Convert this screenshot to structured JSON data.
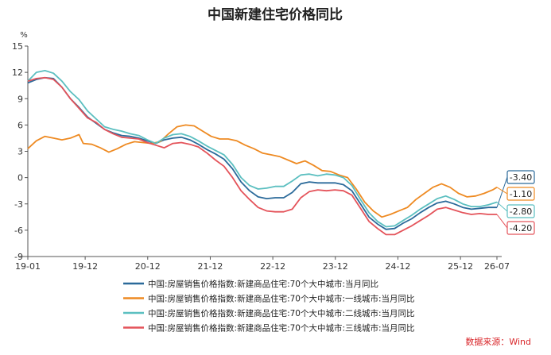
{
  "chart_data": {
    "type": "line",
    "title": "中国新建住宅价格同比",
    "unit": "%",
    "ylim": [
      -9,
      15
    ],
    "yticks": [
      "15",
      "12",
      "9",
      "6",
      "3",
      "0",
      "-3",
      "-6",
      "-9"
    ],
    "xticks": [
      "19-01",
      "19-12",
      "20-12",
      "21-12",
      "22-12",
      "23-12",
      "24-12",
      "25-12",
      "26-07"
    ],
    "grid": false,
    "legend_position": "bottom",
    "source": "数据来源：Wind",
    "series": [
      {
        "name": "中国:房屋销售价格指数:新建商品住宅:70个大中城市:当月同比",
        "color": "#2b6a9a",
        "last_label": "-3.40",
        "points": [
          [
            0,
            10.8
          ],
          [
            2,
            11.2
          ],
          [
            4,
            11.4
          ],
          [
            6,
            11.3
          ],
          [
            8,
            10.3
          ],
          [
            10,
            9.0
          ],
          [
            12,
            8.0
          ],
          [
            14,
            6.9
          ],
          [
            16,
            6.2
          ],
          [
            18,
            5.5
          ],
          [
            20,
            5.1
          ],
          [
            22,
            4.8
          ],
          [
            24,
            4.7
          ],
          [
            26,
            4.5
          ],
          [
            28,
            4.2
          ],
          [
            30,
            3.9
          ],
          [
            32,
            4.3
          ],
          [
            34,
            4.5
          ],
          [
            36,
            4.6
          ],
          [
            38,
            4.3
          ],
          [
            40,
            3.8
          ],
          [
            42,
            3.2
          ],
          [
            44,
            2.7
          ],
          [
            46,
            2.1
          ],
          [
            48,
            1.0
          ],
          [
            50,
            -0.5
          ],
          [
            52,
            -1.5
          ],
          [
            54,
            -2.2
          ],
          [
            56,
            -2.4
          ],
          [
            58,
            -2.3
          ],
          [
            60,
            -2.3
          ],
          [
            62,
            -1.7
          ],
          [
            64,
            -0.7
          ],
          [
            66,
            -0.5
          ],
          [
            68,
            -0.6
          ],
          [
            70,
            -0.6
          ],
          [
            72,
            -0.6
          ],
          [
            74,
            -0.8
          ],
          [
            76,
            -1.5
          ],
          [
            78,
            -3.0
          ],
          [
            80,
            -4.5
          ],
          [
            82,
            -5.3
          ],
          [
            84,
            -5.9
          ],
          [
            86,
            -5.8
          ],
          [
            88,
            -5.2
          ],
          [
            90,
            -4.7
          ],
          [
            92,
            -4.0
          ],
          [
            94,
            -3.4
          ],
          [
            96,
            -2.9
          ],
          [
            98,
            -2.7
          ],
          [
            100,
            -3.0
          ],
          [
            102,
            -3.4
          ],
          [
            104,
            -3.6
          ],
          [
            106,
            -3.5
          ],
          [
            108,
            -3.4
          ],
          [
            110,
            -3.4
          ]
        ]
      },
      {
        "name": "中国:房屋销售价格指数:新建商品住宅:70个大中城市:一线城市:当月同比",
        "color": "#ee8a22",
        "last_label": "-1.10",
        "points": [
          [
            0,
            3.3
          ],
          [
            2,
            4.2
          ],
          [
            4,
            4.7
          ],
          [
            6,
            4.5
          ],
          [
            8,
            4.3
          ],
          [
            10,
            4.5
          ],
          [
            12,
            4.9
          ],
          [
            13,
            3.9
          ],
          [
            15,
            3.8
          ],
          [
            17,
            3.4
          ],
          [
            19,
            2.9
          ],
          [
            21,
            3.3
          ],
          [
            23,
            3.8
          ],
          [
            25,
            4.1
          ],
          [
            27,
            4.0
          ],
          [
            29,
            3.9
          ],
          [
            31,
            4.1
          ],
          [
            33,
            5.0
          ],
          [
            35,
            5.8
          ],
          [
            37,
            6.0
          ],
          [
            39,
            5.9
          ],
          [
            41,
            5.3
          ],
          [
            43,
            4.7
          ],
          [
            45,
            4.4
          ],
          [
            47,
            4.4
          ],
          [
            49,
            4.2
          ],
          [
            51,
            3.7
          ],
          [
            53,
            3.3
          ],
          [
            55,
            2.8
          ],
          [
            57,
            2.6
          ],
          [
            59,
            2.4
          ],
          [
            61,
            2.0
          ],
          [
            63,
            1.6
          ],
          [
            65,
            1.9
          ],
          [
            67,
            1.4
          ],
          [
            69,
            0.8
          ],
          [
            71,
            0.7
          ],
          [
            73,
            0.3
          ],
          [
            75,
            0.0
          ],
          [
            77,
            -1.3
          ],
          [
            79,
            -2.8
          ],
          [
            81,
            -3.8
          ],
          [
            83,
            -4.5
          ],
          [
            85,
            -4.2
          ],
          [
            87,
            -3.8
          ],
          [
            89,
            -3.4
          ],
          [
            91,
            -2.5
          ],
          [
            93,
            -1.8
          ],
          [
            95,
            -1.1
          ],
          [
            97,
            -0.7
          ],
          [
            99,
            -1.1
          ],
          [
            101,
            -1.8
          ],
          [
            103,
            -2.2
          ],
          [
            105,
            -2.1
          ],
          [
            107,
            -1.8
          ],
          [
            109,
            -1.4
          ],
          [
            110,
            -1.1
          ]
        ]
      },
      {
        "name": "中国:房屋销售价格指数:新建商品住宅:70个大中城市:二线城市:当月同比",
        "color": "#5bbfc0",
        "last_label": "-2.80",
        "points": [
          [
            0,
            11.0
          ],
          [
            2,
            12.0
          ],
          [
            4,
            12.2
          ],
          [
            6,
            11.9
          ],
          [
            8,
            11.0
          ],
          [
            10,
            9.8
          ],
          [
            12,
            8.9
          ],
          [
            14,
            7.6
          ],
          [
            16,
            6.7
          ],
          [
            18,
            5.8
          ],
          [
            20,
            5.5
          ],
          [
            22,
            5.3
          ],
          [
            24,
            5.0
          ],
          [
            26,
            4.8
          ],
          [
            28,
            4.3
          ],
          [
            30,
            3.9
          ],
          [
            32,
            4.5
          ],
          [
            34,
            4.9
          ],
          [
            36,
            5.0
          ],
          [
            38,
            4.7
          ],
          [
            40,
            4.2
          ],
          [
            42,
            3.6
          ],
          [
            44,
            3.1
          ],
          [
            46,
            2.6
          ],
          [
            48,
            1.5
          ],
          [
            50,
            0.0
          ],
          [
            52,
            -0.9
          ],
          [
            54,
            -1.3
          ],
          [
            56,
            -1.2
          ],
          [
            58,
            -1.0
          ],
          [
            60,
            -1.0
          ],
          [
            62,
            -0.4
          ],
          [
            64,
            0.3
          ],
          [
            66,
            0.4
          ],
          [
            68,
            0.2
          ],
          [
            70,
            0.4
          ],
          [
            72,
            0.3
          ],
          [
            74,
            0.0
          ],
          [
            76,
            -0.9
          ],
          [
            78,
            -2.5
          ],
          [
            80,
            -4.0
          ],
          [
            82,
            -5.0
          ],
          [
            84,
            -5.6
          ],
          [
            86,
            -5.5
          ],
          [
            88,
            -4.9
          ],
          [
            90,
            -4.3
          ],
          [
            92,
            -3.6
          ],
          [
            94,
            -3.0
          ],
          [
            96,
            -2.4
          ],
          [
            98,
            -2.1
          ],
          [
            100,
            -2.5
          ],
          [
            102,
            -3.0
          ],
          [
            104,
            -3.3
          ],
          [
            106,
            -3.3
          ],
          [
            108,
            -3.1
          ],
          [
            110,
            -2.8
          ]
        ]
      },
      {
        "name": "中国:房屋销售价格指数:新建商品住宅:70个大中城市:三线城市:当月同比",
        "color": "#e4535a",
        "last_label": "-4.20",
        "points": [
          [
            0,
            11.0
          ],
          [
            2,
            11.3
          ],
          [
            4,
            11.4
          ],
          [
            6,
            11.2
          ],
          [
            8,
            10.3
          ],
          [
            10,
            9.0
          ],
          [
            12,
            7.9
          ],
          [
            14,
            6.8
          ],
          [
            16,
            6.3
          ],
          [
            18,
            5.5
          ],
          [
            20,
            5.0
          ],
          [
            22,
            4.6
          ],
          [
            24,
            4.5
          ],
          [
            26,
            4.4
          ],
          [
            28,
            4.0
          ],
          [
            30,
            3.7
          ],
          [
            32,
            3.4
          ],
          [
            34,
            3.9
          ],
          [
            36,
            4.0
          ],
          [
            38,
            3.8
          ],
          [
            40,
            3.5
          ],
          [
            42,
            2.8
          ],
          [
            44,
            2.0
          ],
          [
            46,
            1.3
          ],
          [
            48,
            0.0
          ],
          [
            50,
            -1.5
          ],
          [
            52,
            -2.5
          ],
          [
            54,
            -3.4
          ],
          [
            56,
            -3.8
          ],
          [
            58,
            -3.9
          ],
          [
            60,
            -3.9
          ],
          [
            62,
            -3.6
          ],
          [
            64,
            -2.3
          ],
          [
            66,
            -1.6
          ],
          [
            68,
            -1.4
          ],
          [
            70,
            -1.5
          ],
          [
            72,
            -1.4
          ],
          [
            74,
            -1.5
          ],
          [
            76,
            -2.0
          ],
          [
            78,
            -3.5
          ],
          [
            80,
            -5.0
          ],
          [
            82,
            -5.8
          ],
          [
            84,
            -6.5
          ],
          [
            86,
            -6.5
          ],
          [
            88,
            -6.0
          ],
          [
            90,
            -5.5
          ],
          [
            92,
            -4.9
          ],
          [
            94,
            -4.3
          ],
          [
            96,
            -3.6
          ],
          [
            98,
            -3.4
          ],
          [
            100,
            -3.7
          ],
          [
            102,
            -4.0
          ],
          [
            104,
            -4.2
          ],
          [
            106,
            -4.1
          ],
          [
            108,
            -4.2
          ],
          [
            110,
            -4.2
          ]
        ]
      }
    ]
  }
}
